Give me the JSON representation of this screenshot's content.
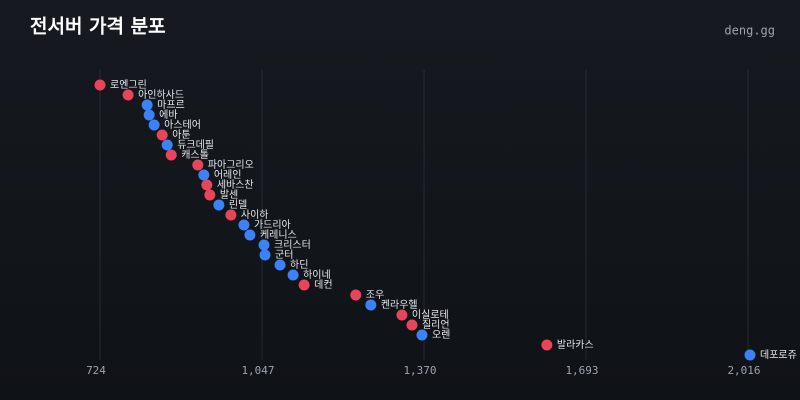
{
  "chart_data": {
    "type": "dot",
    "title": "전서버 가격 분포",
    "brand": "deng.gg",
    "categories": [
      "로엔그린",
      "아인하사드",
      "마프르",
      "에바",
      "아스테어",
      "아툰",
      "듀크데필",
      "캐스톨",
      "파아그리오",
      "어레인",
      "세바스찬",
      "발센",
      "린델",
      "사이하",
      "가드리아",
      "케레니스",
      "크리스터",
      "군터",
      "하딘",
      "하이네",
      "데컨",
      "조우",
      "켄라우헬",
      "이실로테",
      "질리언",
      "오렌",
      "발라카스",
      "데포로쥬"
    ],
    "values": [
      724,
      780,
      818,
      822,
      832,
      848,
      858,
      866,
      919,
      931,
      937,
      943,
      961,
      985,
      1011,
      1023,
      1051,
      1053,
      1083,
      1109,
      1131,
      1234,
      1264,
      1326,
      1346,
      1366,
      1615,
      2020
    ],
    "colors": [
      "#e8445a",
      "#e8445a",
      "#3b82f6",
      "#3b82f6",
      "#3b82f6",
      "#e8445a",
      "#3b82f6",
      "#e8445a",
      "#e8445a",
      "#3b82f6",
      "#e8445a",
      "#e8445a",
      "#3b82f6",
      "#e8445a",
      "#3b82f6",
      "#3b82f6",
      "#3b82f6",
      "#3b82f6",
      "#3b82f6",
      "#3b82f6",
      "#e8445a",
      "#e8445a",
      "#3b82f6",
      "#e8445a",
      "#e8445a",
      "#3b82f6",
      "#e8445a",
      "#3b82f6"
    ],
    "xlim": [
      724,
      2016
    ],
    "xticks": [
      724,
      {
        "value": 1047,
        "label": "1,047"
      },
      {
        "value": 1370,
        "label": "1,370"
      },
      {
        "value": 1693,
        "label": "1,693"
      },
      {
        "value": 2016,
        "label": "2,016"
      }
    ],
    "grid": true
  }
}
